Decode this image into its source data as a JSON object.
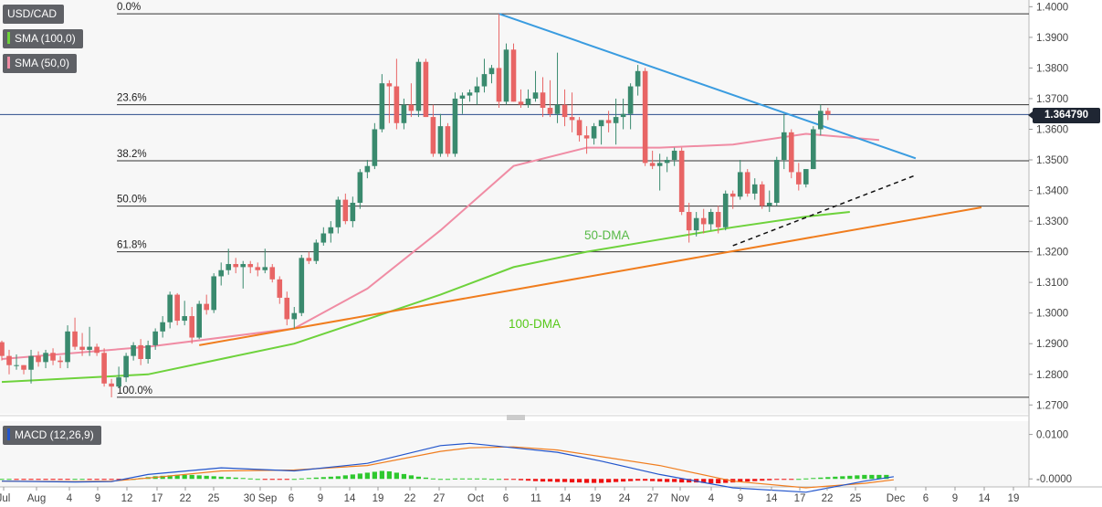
{
  "header": {
    "symbol": "USD/CAD",
    "indicator_sma100": "SMA (100,0)",
    "indicator_sma50": "SMA (50,0)",
    "indicator_macd": "MACD (12,26,9)"
  },
  "last_price": "1.364790",
  "colors": {
    "up": "#3a8a6e",
    "down": "#e86565",
    "sma50": "#f08ca4",
    "sma100": "#6ed23c",
    "trend_down": "#3a9ce0",
    "trend_up": "#f07d1e",
    "macd_line": "#2255cc",
    "signal_line": "#f07d1e",
    "hist_pos": "#2ec82e",
    "hist_neg": "#ee1111"
  },
  "chart_data": [
    {
      "type": "candlestick",
      "title": "USD/CAD",
      "y_range": [
        1.268,
        1.401
      ],
      "y_ticks": [
        "1.4000",
        "1.3900",
        "1.3800",
        "1.3700",
        "1.3600",
        "1.3500",
        "1.3400",
        "1.3300",
        "1.3200",
        "1.3100",
        "1.3000",
        "1.2900",
        "1.2800",
        "1.2700"
      ],
      "x_ticks": [
        "Jul",
        "Aug",
        "4",
        "9",
        "12",
        "17",
        "22",
        "25",
        "30 Sep",
        "6",
        "9",
        "14",
        "19",
        "22",
        "27",
        "Oct",
        "6",
        "11",
        "14",
        "19",
        "24",
        "27",
        "Nov",
        "4",
        "9",
        "14",
        "17",
        "22",
        "25",
        "Dec",
        "6",
        "9",
        "14",
        "19"
      ],
      "fib_levels": [
        {
          "label": "0.0%",
          "price": 1.3977
        },
        {
          "label": "23.6%",
          "price": 1.368
        },
        {
          "label": "38.2%",
          "price": 1.3497
        },
        {
          "label": "50.0%",
          "price": 1.3349
        },
        {
          "label": "61.8%",
          "price": 1.32
        },
        {
          "label": "100.0%",
          "price": 1.2725
        }
      ],
      "annotations": [
        "50-DMA",
        "100-DMA"
      ],
      "candles": [
        [
          1.2905,
          1.291,
          1.2845,
          1.286
        ],
        [
          1.286,
          1.288,
          1.28,
          1.283
        ],
        [
          1.283,
          1.2865,
          1.2815,
          1.283
        ],
        [
          1.283,
          1.283,
          1.28,
          1.2815
        ],
        [
          1.2815,
          1.288,
          1.277,
          1.286
        ],
        [
          1.286,
          1.2875,
          1.2825,
          1.284
        ],
        [
          1.284,
          1.288,
          1.282,
          1.287
        ],
        [
          1.287,
          1.2885,
          1.283,
          1.2845
        ],
        [
          1.2845,
          1.286,
          1.282,
          1.284
        ],
        [
          1.284,
          1.296,
          1.282,
          1.294
        ],
        [
          1.294,
          1.2985,
          1.288,
          1.289
        ],
        [
          1.289,
          1.2935,
          1.286,
          1.288
        ],
        [
          1.288,
          1.2955,
          1.286,
          1.289
        ],
        [
          1.289,
          1.29,
          1.286,
          1.287
        ],
        [
          1.287,
          1.2885,
          1.276,
          1.277
        ],
        [
          1.277,
          1.2785,
          1.2725,
          1.276
        ],
        [
          1.276,
          1.2825,
          1.2755,
          1.279
        ],
        [
          1.279,
          1.287,
          1.2775,
          1.286
        ],
        [
          1.286,
          1.2905,
          1.2845,
          1.2895
        ],
        [
          1.2895,
          1.2915,
          1.283,
          1.285
        ],
        [
          1.285,
          1.291,
          1.2835,
          1.2895
        ],
        [
          1.2895,
          1.295,
          1.288,
          1.294
        ],
        [
          1.294,
          1.299,
          1.292,
          1.297
        ],
        [
          1.297,
          1.307,
          1.295,
          1.306
        ],
        [
          1.306,
          1.3065,
          1.296,
          1.2975
        ],
        [
          1.2975,
          1.304,
          1.296,
          1.299
        ],
        [
          1.299,
          1.302,
          1.29,
          1.292
        ],
        [
          1.292,
          1.304,
          1.2915,
          1.303
        ],
        [
          1.303,
          1.306,
          1.2995,
          1.301
        ],
        [
          1.301,
          1.313,
          1.3,
          1.312
        ],
        [
          1.312,
          1.3165,
          1.309,
          1.314
        ],
        [
          1.314,
          1.321,
          1.3125,
          1.316
        ],
        [
          1.316,
          1.318,
          1.313,
          1.315
        ],
        [
          1.315,
          1.317,
          1.308,
          1.316
        ],
        [
          1.316,
          1.317,
          1.313,
          1.315
        ],
        [
          1.315,
          1.3165,
          1.312,
          1.314
        ],
        [
          1.314,
          1.321,
          1.313,
          1.315
        ],
        [
          1.315,
          1.316,
          1.31,
          1.311
        ],
        [
          1.311,
          1.312,
          1.303,
          1.305
        ],
        [
          1.305,
          1.307,
          1.296,
          1.298
        ],
        [
          1.298,
          1.302,
          1.295,
          1.3
        ],
        [
          1.3,
          1.319,
          1.299,
          1.318
        ],
        [
          1.318,
          1.32,
          1.316,
          1.317
        ],
        [
          1.317,
          1.324,
          1.316,
          1.323
        ],
        [
          1.323,
          1.328,
          1.322,
          1.326
        ],
        [
          1.326,
          1.33,
          1.323,
          1.328
        ],
        [
          1.328,
          1.338,
          1.326,
          1.337
        ],
        [
          1.337,
          1.339,
          1.329,
          1.33
        ],
        [
          1.33,
          1.338,
          1.328,
          1.336
        ],
        [
          1.336,
          1.347,
          1.334,
          1.346
        ],
        [
          1.346,
          1.35,
          1.344,
          1.348
        ],
        [
          1.348,
          1.362,
          1.347,
          1.36
        ],
        [
          1.36,
          1.378,
          1.359,
          1.375
        ],
        [
          1.375,
          1.376,
          1.362,
          1.374
        ],
        [
          1.374,
          1.383,
          1.36,
          1.362
        ],
        [
          1.362,
          1.37,
          1.36,
          1.368
        ],
        [
          1.368,
          1.375,
          1.364,
          1.366
        ],
        [
          1.366,
          1.383,
          1.364,
          1.382
        ],
        [
          1.382,
          1.383,
          1.364,
          1.364
        ],
        [
          1.364,
          1.368,
          1.351,
          1.352
        ],
        [
          1.352,
          1.365,
          1.351,
          1.361
        ],
        [
          1.361,
          1.362,
          1.351,
          1.352
        ],
        [
          1.352,
          1.372,
          1.351,
          1.37
        ],
        [
          1.37,
          1.372,
          1.365,
          1.371
        ],
        [
          1.371,
          1.373,
          1.369,
          1.372
        ],
        [
          1.372,
          1.377,
          1.368,
          1.374
        ],
        [
          1.374,
          1.383,
          1.372,
          1.378
        ],
        [
          1.378,
          1.381,
          1.375,
          1.38
        ],
        [
          1.38,
          1.3977,
          1.367,
          1.369
        ],
        [
          1.369,
          1.388,
          1.368,
          1.386
        ],
        [
          1.386,
          1.388,
          1.369,
          1.369
        ],
        [
          1.369,
          1.373,
          1.367,
          1.368
        ],
        [
          1.368,
          1.373,
          1.367,
          1.37
        ],
        [
          1.37,
          1.379,
          1.369,
          1.372
        ],
        [
          1.372,
          1.377,
          1.364,
          1.367
        ],
        [
          1.367,
          1.376,
          1.364,
          1.365
        ],
        [
          1.365,
          1.385,
          1.362,
          1.368
        ],
        [
          1.368,
          1.373,
          1.361,
          1.364
        ],
        [
          1.364,
          1.372,
          1.359,
          1.363
        ],
        [
          1.363,
          1.364,
          1.356,
          1.358
        ],
        [
          1.358,
          1.361,
          1.352,
          1.357
        ],
        [
          1.357,
          1.362,
          1.355,
          1.361
        ],
        [
          1.361,
          1.363,
          1.355,
          1.363
        ],
        [
          1.363,
          1.366,
          1.359,
          1.362
        ],
        [
          1.362,
          1.37,
          1.355,
          1.364
        ],
        [
          1.364,
          1.37,
          1.36,
          1.365
        ],
        [
          1.365,
          1.375,
          1.36,
          1.374
        ],
        [
          1.374,
          1.381,
          1.371,
          1.379
        ],
        [
          1.379,
          1.38,
          1.348,
          1.349
        ],
        [
          1.349,
          1.353,
          1.347,
          1.348
        ],
        [
          1.348,
          1.352,
          1.34,
          1.349
        ],
        [
          1.349,
          1.351,
          1.346,
          1.35
        ],
        [
          1.35,
          1.354,
          1.348,
          1.353
        ],
        [
          1.353,
          1.354,
          1.332,
          1.333
        ],
        [
          1.333,
          1.336,
          1.323,
          1.327
        ],
        [
          1.327,
          1.333,
          1.325,
          1.331
        ],
        [
          1.331,
          1.334,
          1.326,
          1.329
        ],
        [
          1.329,
          1.334,
          1.327,
          1.333
        ],
        [
          1.333,
          1.335,
          1.326,
          1.328
        ],
        [
          1.328,
          1.34,
          1.327,
          1.339
        ],
        [
          1.339,
          1.34,
          1.334,
          1.338
        ],
        [
          1.338,
          1.35,
          1.337,
          1.346
        ],
        [
          1.346,
          1.347,
          1.338,
          1.339
        ],
        [
          1.339,
          1.344,
          1.337,
          1.342
        ],
        [
          1.342,
          1.343,
          1.334,
          1.335
        ],
        [
          1.335,
          1.34,
          1.333,
          1.336
        ],
        [
          1.336,
          1.351,
          1.335,
          1.35
        ],
        [
          1.35,
          1.365,
          1.347,
          1.359
        ],
        [
          1.359,
          1.36,
          1.344,
          1.346
        ],
        [
          1.346,
          1.349,
          1.34,
          1.342
        ],
        [
          1.342,
          1.347,
          1.341,
          1.347
        ],
        [
          1.347,
          1.361,
          1.347,
          1.36
        ],
        [
          1.36,
          1.368,
          1.358,
          1.366
        ],
        [
          1.366,
          1.367,
          1.363,
          1.3648
        ]
      ],
      "sma50": [
        [
          0,
          1.285
        ],
        [
          20,
          1.289
        ],
        [
          40,
          1.295
        ],
        [
          50,
          1.308
        ],
        [
          60,
          1.327
        ],
        [
          70,
          1.348
        ],
        [
          80,
          1.354
        ],
        [
          90,
          1.354
        ],
        [
          100,
          1.355
        ],
        [
          110,
          1.3585
        ],
        [
          120,
          1.3565
        ]
      ],
      "sma100": [
        [
          0,
          1.2775
        ],
        [
          20,
          1.28
        ],
        [
          40,
          1.29
        ],
        [
          50,
          1.298
        ],
        [
          60,
          1.306
        ],
        [
          70,
          1.315
        ],
        [
          80,
          1.32
        ],
        [
          90,
          1.324
        ],
        [
          100,
          1.328
        ],
        [
          110,
          1.3315
        ],
        [
          116,
          1.333
        ]
      ],
      "trendlines": [
        {
          "kind": "resistance",
          "from": [
            68,
            1.3977
          ],
          "to": [
            125,
            1.3505
          ]
        },
        {
          "kind": "support",
          "from": [
            27,
            1.2895
          ],
          "to": [
            134,
            1.3345
          ]
        },
        {
          "kind": "support-dashed",
          "from": [
            100,
            1.322
          ],
          "to": [
            125,
            1.345
          ]
        }
      ]
    },
    {
      "type": "macd",
      "title": "MACD (12,26,9)",
      "y_ticks": [
        "0.0100",
        "-0.0000"
      ],
      "macd_line": [
        [
          0,
          -0.0005
        ],
        [
          10,
          -0.0007
        ],
        [
          15,
          -0.0006
        ],
        [
          20,
          0.001
        ],
        [
          30,
          0.0025
        ],
        [
          40,
          0.0018
        ],
        [
          50,
          0.0035
        ],
        [
          60,
          0.0075
        ],
        [
          64,
          0.008
        ],
        [
          70,
          0.007
        ],
        [
          76,
          0.006
        ],
        [
          82,
          0.004
        ],
        [
          90,
          0.001
        ],
        [
          100,
          -0.002
        ],
        [
          110,
          -0.003
        ],
        [
          118,
          -0.0005
        ],
        [
          122,
          0.0005
        ]
      ],
      "signal_line": [
        [
          0,
          -0.0005
        ],
        [
          10,
          -0.0006
        ],
        [
          15,
          -0.0005
        ],
        [
          20,
          0.0002
        ],
        [
          30,
          0.0018
        ],
        [
          40,
          0.002
        ],
        [
          50,
          0.003
        ],
        [
          60,
          0.0062
        ],
        [
          64,
          0.007
        ],
        [
          70,
          0.0072
        ],
        [
          76,
          0.0065
        ],
        [
          82,
          0.005
        ],
        [
          90,
          0.003
        ],
        [
          100,
          -0.0005
        ],
        [
          110,
          -0.002
        ],
        [
          118,
          -0.001
        ],
        [
          122,
          -0.0002
        ]
      ],
      "histogram": [
        0.0,
        0.0,
        -0.0001,
        -0.0001,
        -0.0001,
        -0.0001,
        -0.0001,
        -0.0001,
        -0.0001,
        -0.0001,
        0.0,
        0.0,
        -0.0001,
        -0.0001,
        -0.0002,
        -0.0002,
        -0.0002,
        -0.0001,
        0.0,
        0.0002,
        0.0004,
        0.0006,
        0.0007,
        0.0008,
        0.0009,
        0.0009,
        0.0009,
        0.0008,
        0.0007,
        0.0006,
        0.0005,
        0.0004,
        0.0003,
        0.0002,
        0.0001,
        0.0,
        -0.0001,
        -0.0001,
        -0.0001,
        -0.0001,
        0.0,
        0.0001,
        0.0002,
        0.0003,
        0.0004,
        0.0005,
        0.0006,
        0.0008,
        0.001,
        0.0012,
        0.0014,
        0.0016,
        0.0018,
        0.0017,
        0.0014,
        0.0011,
        0.0008,
        0.0005,
        0.0003,
        0.0001,
        0.0,
        0.0,
        0.0001,
        0.0001,
        0.0001,
        0.0001,
        0.0001,
        0.0,
        0.0,
        -0.0001,
        -0.0002,
        -0.0003,
        -0.0004,
        -0.0005,
        -0.0006,
        -0.0006,
        -0.0007,
        -0.0007,
        -0.0008,
        -0.0008,
        -0.0009,
        -0.0009,
        -0.0009,
        -0.0008,
        -0.0007,
        -0.0006,
        -0.0005,
        -0.0004,
        -0.0004,
        -0.0005,
        -0.0006,
        -0.0007,
        -0.0007,
        -0.0008,
        -0.0008,
        -0.0008,
        -0.0009,
        -0.001,
        -0.001,
        -0.0009,
        -0.0008,
        -0.0007,
        -0.0006,
        -0.0005,
        -0.0004,
        -0.0003,
        -0.0002,
        -0.0001,
        -0.0001,
        0.0,
        0.0001,
        0.0002,
        0.0003,
        0.0004,
        0.0005,
        0.0006,
        0.0007,
        0.0008,
        0.0009,
        0.0009,
        0.0009,
        0.0009
      ]
    }
  ]
}
